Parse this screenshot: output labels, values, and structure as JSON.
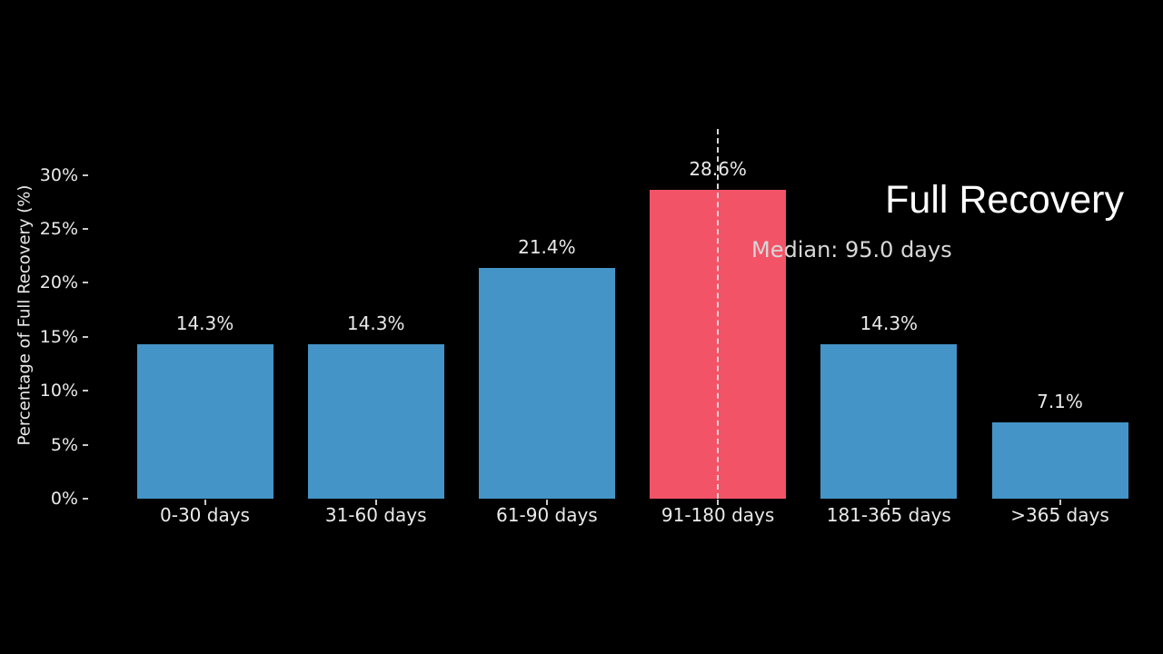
{
  "chart_data": {
    "type": "bar",
    "title": "Full Recovery",
    "ylabel": "Percentage of Full Recovery (%)",
    "categories": [
      "0-30 days",
      "31-60 days",
      "61-90 days",
      "91-180 days",
      "181-365 days",
      ">365 days"
    ],
    "values": [
      14.3,
      14.3,
      21.4,
      28.6,
      14.3,
      7.1
    ],
    "value_labels": [
      "14.3%",
      "14.3%",
      "21.4%",
      "28.6%",
      "14.3%",
      "7.1%"
    ],
    "ytick_values": [
      0,
      5,
      10,
      15,
      20,
      25,
      30
    ],
    "ytick_labels": [
      "0%",
      "5%",
      "10%",
      "15%",
      "20%",
      "25%",
      "30%"
    ],
    "ylim": [
      0,
      34
    ],
    "grid": false,
    "legend": false,
    "highlight_index": 3,
    "median_annotation": "Median: 95.0 days",
    "median_value_days": 95.0,
    "colors": {
      "background": "#000000",
      "bar": "#4494c7",
      "highlight_bar": "#f25367",
      "axis_text": "#eaeaea",
      "median_line": "#d9d9d9",
      "title_text": "#ffffff"
    }
  }
}
